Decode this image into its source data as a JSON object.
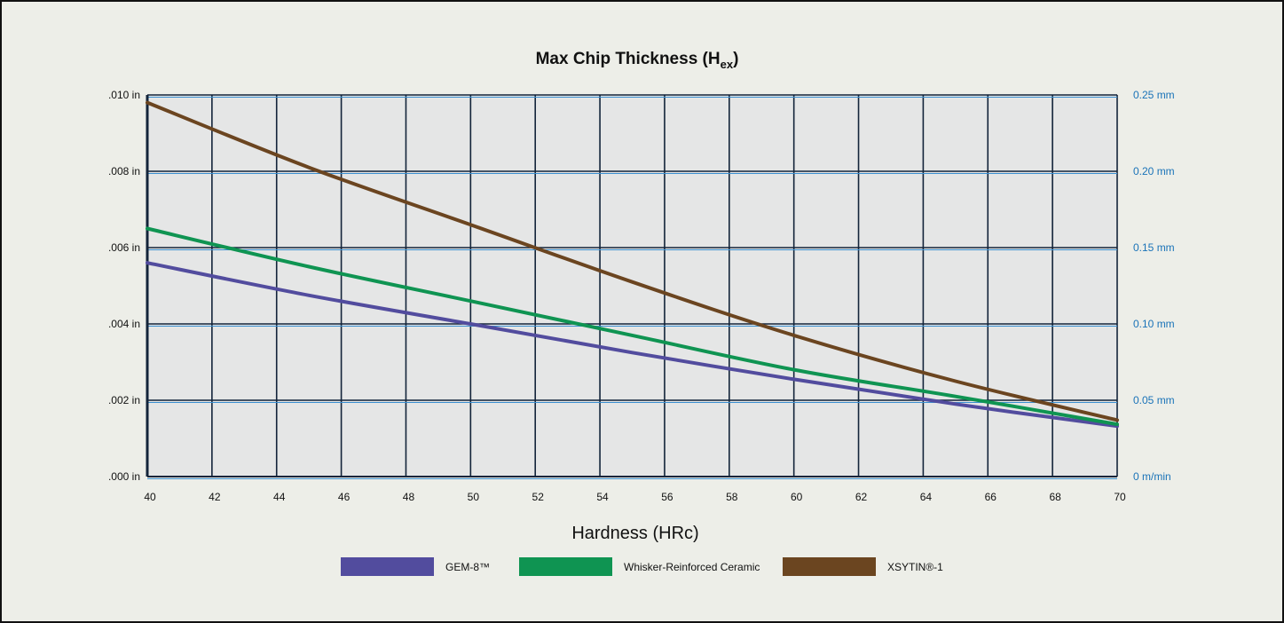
{
  "chart_data": {
    "type": "line",
    "title": "Max Chip Thickness (H",
    "title_sub": "ex",
    "title_close": ")",
    "xlabel": "Hardness (HRc)",
    "x_ticks": [
      "40",
      "42",
      "44",
      "46",
      "48",
      "50",
      "52",
      "54",
      "56",
      "58",
      "60",
      "62",
      "64",
      "66",
      "68",
      "70"
    ],
    "y_ticks_left": [
      ".000 in",
      ".002 in",
      ".004 in",
      ".006 in",
      ".008 in",
      ".010 in"
    ],
    "y_ticks_right": [
      "0 m/min",
      "0.05 mm",
      "0.10 mm",
      "0.15 mm",
      "0.20 mm",
      "0.25 mm"
    ],
    "xlim": [
      40,
      70
    ],
    "ylim": [
      0,
      0.01
    ],
    "grid": true,
    "legend_position": "bottom",
    "series": [
      {
        "name": "GEM-8™",
        "color": "#524c9e",
        "x": [
          40,
          45,
          50,
          55,
          60,
          65,
          70
        ],
        "y": [
          0.0056,
          0.00475,
          0.004,
          0.00325,
          0.00255,
          0.0019,
          0.00132
        ]
      },
      {
        "name": "Whisker-Reinforced Ceramic",
        "color": "#0f9452",
        "x": [
          40,
          45,
          50,
          55,
          60,
          65,
          70
        ],
        "y": [
          0.0065,
          0.0055,
          0.0046,
          0.0037,
          0.0028,
          0.0021,
          0.00137
        ]
      },
      {
        "name": "XSYTIN®-1",
        "color": "#6b4520",
        "x": [
          40,
          45,
          50,
          55,
          60,
          65,
          70
        ],
        "y": [
          0.0098,
          0.0081,
          0.0066,
          0.0051,
          0.0037,
          0.0025,
          0.00148
        ]
      }
    ]
  }
}
